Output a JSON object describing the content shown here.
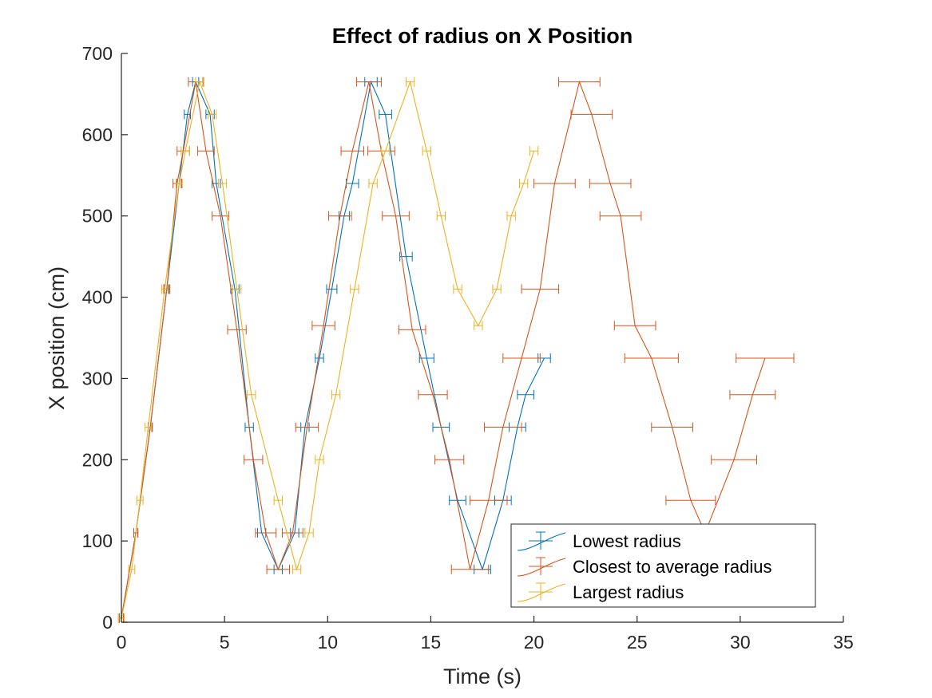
{
  "chart_data": {
    "type": "line",
    "title": "Effect of radius on X Position",
    "xlabel": "Time (s)",
    "ylabel": "X position (cm)",
    "xlim": [
      0,
      35
    ],
    "ylim": [
      0,
      700
    ],
    "xticks": [
      0,
      5,
      10,
      15,
      20,
      25,
      30,
      35
    ],
    "yticks": [
      0,
      100,
      200,
      300,
      400,
      500,
      600,
      700
    ],
    "error_bars": "horizontal",
    "legend_position": "bottom-right",
    "series": [
      {
        "name": "Lowest radius",
        "color": "#0072BD",
        "points": [
          {
            "x": 0.0,
            "y": 5,
            "err": 0.1
          },
          {
            "x": 0.7,
            "y": 110,
            "err": 0.1
          },
          {
            "x": 1.4,
            "y": 240,
            "err": 0.1
          },
          {
            "x": 2.2,
            "y": 410,
            "err": 0.1
          },
          {
            "x": 2.8,
            "y": 540,
            "err": 0.12
          },
          {
            "x": 3.2,
            "y": 625,
            "err": 0.15
          },
          {
            "x": 3.6,
            "y": 665,
            "err": 0.15
          },
          {
            "x": 4.3,
            "y": 625,
            "err": 0.2
          },
          {
            "x": 4.6,
            "y": 540,
            "err": 0.2
          },
          {
            "x": 5.5,
            "y": 410,
            "err": 0.2
          },
          {
            "x": 6.2,
            "y": 240,
            "err": 0.2
          },
          {
            "x": 6.8,
            "y": 110,
            "err": 0.2
          },
          {
            "x": 7.6,
            "y": 65,
            "err": 0.2
          },
          {
            "x": 8.4,
            "y": 110,
            "err": 0.2
          },
          {
            "x": 8.9,
            "y": 240,
            "err": 0.2
          },
          {
            "x": 9.6,
            "y": 325,
            "err": 0.2
          },
          {
            "x": 10.2,
            "y": 410,
            "err": 0.25
          },
          {
            "x": 10.8,
            "y": 500,
            "err": 0.25
          },
          {
            "x": 11.2,
            "y": 540,
            "err": 0.3
          },
          {
            "x": 12.1,
            "y": 665,
            "err": 0.3
          },
          {
            "x": 12.8,
            "y": 625,
            "err": 0.3
          },
          {
            "x": 13.8,
            "y": 450,
            "err": 0.3
          },
          {
            "x": 14.8,
            "y": 325,
            "err": 0.35
          },
          {
            "x": 15.5,
            "y": 240,
            "err": 0.4
          },
          {
            "x": 16.3,
            "y": 150,
            "err": 0.4
          },
          {
            "x": 17.5,
            "y": 65,
            "err": 0.4
          },
          {
            "x": 18.5,
            "y": 150,
            "err": 0.4
          },
          {
            "x": 19.2,
            "y": 240,
            "err": 0.4
          },
          {
            "x": 19.6,
            "y": 280,
            "err": 0.4
          },
          {
            "x": 20.5,
            "y": 325,
            "err": 0.3
          }
        ]
      },
      {
        "name": "Closest to average radius",
        "color": "#D95319",
        "points": [
          {
            "x": 0.0,
            "y": 5,
            "err": 0.1
          },
          {
            "x": 0.7,
            "y": 110,
            "err": 0.1
          },
          {
            "x": 1.4,
            "y": 240,
            "err": 0.1
          },
          {
            "x": 2.2,
            "y": 410,
            "err": 0.15
          },
          {
            "x": 2.7,
            "y": 540,
            "err": 0.2
          },
          {
            "x": 3.0,
            "y": 580,
            "err": 0.3
          },
          {
            "x": 3.6,
            "y": 665,
            "err": 0.35
          },
          {
            "x": 4.1,
            "y": 580,
            "err": 0.4
          },
          {
            "x": 4.8,
            "y": 500,
            "err": 0.4
          },
          {
            "x": 5.6,
            "y": 360,
            "err": 0.45
          },
          {
            "x": 6.4,
            "y": 200,
            "err": 0.45
          },
          {
            "x": 7.0,
            "y": 110,
            "err": 0.5
          },
          {
            "x": 7.6,
            "y": 65,
            "err": 0.55
          },
          {
            "x": 8.3,
            "y": 110,
            "err": 0.5
          },
          {
            "x": 9.0,
            "y": 240,
            "err": 0.55
          },
          {
            "x": 9.8,
            "y": 365,
            "err": 0.55
          },
          {
            "x": 10.6,
            "y": 500,
            "err": 0.55
          },
          {
            "x": 11.2,
            "y": 580,
            "err": 0.55
          },
          {
            "x": 12.0,
            "y": 665,
            "err": 0.6
          },
          {
            "x": 12.6,
            "y": 580,
            "err": 0.65
          },
          {
            "x": 13.3,
            "y": 500,
            "err": 0.65
          },
          {
            "x": 14.1,
            "y": 360,
            "err": 0.65
          },
          {
            "x": 15.1,
            "y": 280,
            "err": 0.7
          },
          {
            "x": 15.9,
            "y": 200,
            "err": 0.7
          },
          {
            "x": 16.9,
            "y": 65,
            "err": 0.9
          },
          {
            "x": 17.8,
            "y": 150,
            "err": 0.9
          },
          {
            "x": 18.5,
            "y": 240,
            "err": 0.9
          },
          {
            "x": 19.4,
            "y": 325,
            "err": 0.9
          },
          {
            "x": 20.3,
            "y": 410,
            "err": 0.9
          },
          {
            "x": 21.0,
            "y": 540,
            "err": 1.0
          },
          {
            "x": 22.2,
            "y": 665,
            "err": 1.0
          },
          {
            "x": 22.8,
            "y": 625,
            "err": 1.0
          },
          {
            "x": 23.7,
            "y": 540,
            "err": 1.0
          },
          {
            "x": 24.2,
            "y": 500,
            "err": 1.0
          },
          {
            "x": 24.9,
            "y": 365,
            "err": 1.0
          },
          {
            "x": 25.7,
            "y": 325,
            "err": 1.3
          },
          {
            "x": 26.7,
            "y": 240,
            "err": 1.0
          },
          {
            "x": 27.6,
            "y": 150,
            "err": 1.2
          },
          {
            "x": 28.3,
            "y": 110,
            "err": 1.2
          },
          {
            "x": 29.7,
            "y": 200,
            "err": 1.1
          },
          {
            "x": 30.6,
            "y": 280,
            "err": 1.1
          },
          {
            "x": 31.2,
            "y": 325,
            "err": 1.4
          }
        ]
      },
      {
        "name": "Largest radius",
        "color": "#EDB120",
        "points": [
          {
            "x": 0.0,
            "y": 5,
            "err": 0.15
          },
          {
            "x": 0.5,
            "y": 65,
            "err": 0.15
          },
          {
            "x": 0.9,
            "y": 150,
            "err": 0.15
          },
          {
            "x": 1.3,
            "y": 240,
            "err": 0.15
          },
          {
            "x": 2.1,
            "y": 410,
            "err": 0.15
          },
          {
            "x": 2.8,
            "y": 540,
            "err": 0.15
          },
          {
            "x": 3.1,
            "y": 580,
            "err": 0.2
          },
          {
            "x": 3.8,
            "y": 665,
            "err": 0.2
          },
          {
            "x": 4.4,
            "y": 625,
            "err": 0.2
          },
          {
            "x": 4.9,
            "y": 540,
            "err": 0.2
          },
          {
            "x": 5.6,
            "y": 410,
            "err": 0.2
          },
          {
            "x": 6.3,
            "y": 280,
            "err": 0.2
          },
          {
            "x": 7.6,
            "y": 150,
            "err": 0.2
          },
          {
            "x": 8.5,
            "y": 65,
            "err": 0.2
          },
          {
            "x": 9.1,
            "y": 110,
            "err": 0.2
          },
          {
            "x": 9.6,
            "y": 200,
            "err": 0.2
          },
          {
            "x": 10.4,
            "y": 280,
            "err": 0.2
          },
          {
            "x": 11.3,
            "y": 410,
            "err": 0.2
          },
          {
            "x": 12.2,
            "y": 540,
            "err": 0.2
          },
          {
            "x": 12.8,
            "y": 580,
            "err": 0.2
          },
          {
            "x": 14.0,
            "y": 665,
            "err": 0.2
          },
          {
            "x": 14.8,
            "y": 580,
            "err": 0.2
          },
          {
            "x": 15.5,
            "y": 500,
            "err": 0.2
          },
          {
            "x": 16.3,
            "y": 410,
            "err": 0.2
          },
          {
            "x": 17.3,
            "y": 365,
            "err": 0.2
          },
          {
            "x": 18.2,
            "y": 410,
            "err": 0.2
          },
          {
            "x": 18.9,
            "y": 500,
            "err": 0.2
          },
          {
            "x": 19.5,
            "y": 540,
            "err": 0.2
          },
          {
            "x": 20.0,
            "y": 580,
            "err": 0.2
          }
        ]
      }
    ]
  }
}
